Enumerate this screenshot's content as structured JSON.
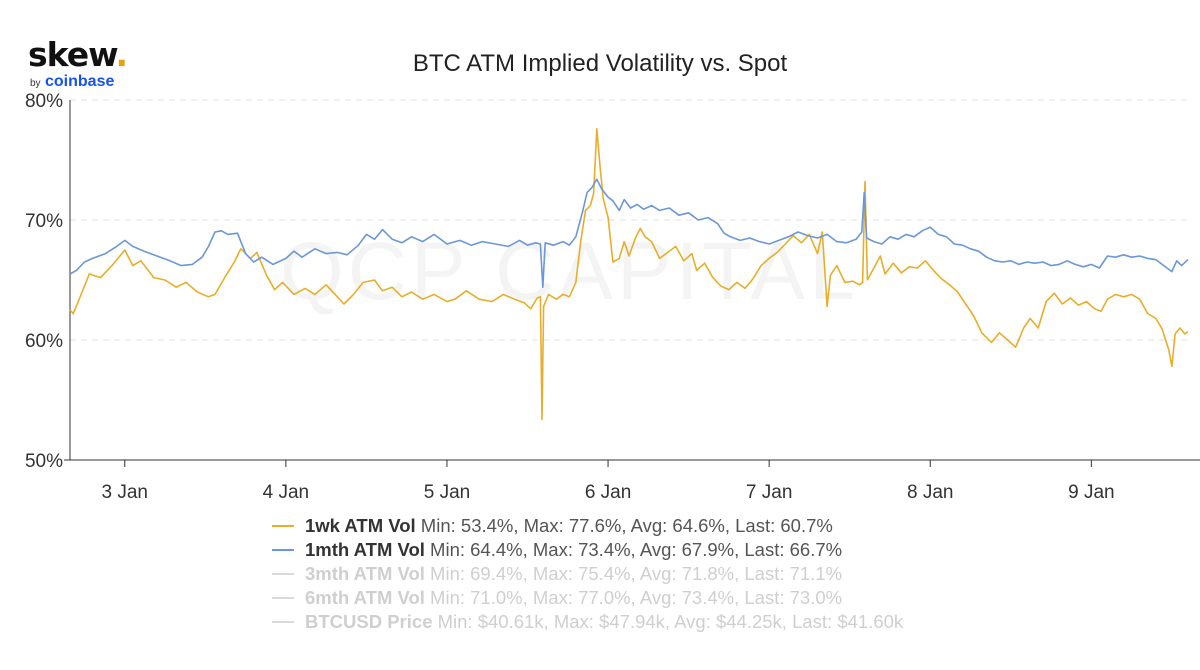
{
  "logo": {
    "wordmark": "skew",
    "dot": ".",
    "by": "by",
    "brand": "coinbase"
  },
  "watermark": "QCP CAPITAL",
  "colors": {
    "series_1wk": "#e8ae2b",
    "series_1mth": "#6a97d8",
    "grid": "#e0e0e0",
    "axis": "#333333",
    "hidden": "#cfcfcf"
  },
  "chart_data": {
    "type": "line",
    "title": "BTC ATM Implied Volatility vs. Spot",
    "xlabel": "",
    "ylabel": "",
    "ylim": [
      50,
      80
    ],
    "xlim": [
      2.66,
      9.6
    ],
    "y_ticks": [
      "50%",
      "60%",
      "70%",
      "80%"
    ],
    "y_tick_values": [
      50,
      60,
      70,
      80
    ],
    "x_ticks": [
      "3 Jan",
      "4 Jan",
      "5 Jan",
      "6 Jan",
      "7 Jan",
      "8 Jan",
      "9 Jan"
    ],
    "x_tick_values": [
      3,
      4,
      5,
      6,
      7,
      8,
      9
    ],
    "grid": "horizontal dashed",
    "legend_position": "bottom",
    "series": [
      {
        "name": "1wk ATM Vol",
        "visible": true,
        "color": "#e8ae2b",
        "stats": "Min: 53.4%, Max: 77.6%, Avg: 64.6%, Last: 60.7%",
        "points": [
          [
            2.66,
            62.5
          ],
          [
            2.68,
            62.2
          ],
          [
            2.72,
            63.5
          ],
          [
            2.78,
            65.5
          ],
          [
            2.85,
            65.2
          ],
          [
            2.92,
            66.2
          ],
          [
            2.97,
            67.0
          ],
          [
            3.0,
            67.5
          ],
          [
            3.05,
            66.2
          ],
          [
            3.1,
            66.6
          ],
          [
            3.18,
            65.2
          ],
          [
            3.25,
            65.0
          ],
          [
            3.32,
            64.4
          ],
          [
            3.38,
            64.8
          ],
          [
            3.45,
            64.0
          ],
          [
            3.52,
            63.6
          ],
          [
            3.56,
            63.8
          ],
          [
            3.62,
            65.2
          ],
          [
            3.68,
            66.5
          ],
          [
            3.72,
            67.6
          ],
          [
            3.78,
            66.8
          ],
          [
            3.82,
            67.3
          ],
          [
            3.88,
            65.4
          ],
          [
            3.93,
            64.2
          ],
          [
            3.98,
            64.8
          ],
          [
            4.05,
            63.8
          ],
          [
            4.12,
            64.3
          ],
          [
            4.18,
            63.8
          ],
          [
            4.25,
            64.6
          ],
          [
            4.32,
            63.6
          ],
          [
            4.36,
            63.0
          ],
          [
            4.42,
            63.8
          ],
          [
            4.48,
            64.8
          ],
          [
            4.55,
            65.0
          ],
          [
            4.6,
            64.1
          ],
          [
            4.66,
            64.4
          ],
          [
            4.72,
            63.6
          ],
          [
            4.78,
            64.0
          ],
          [
            4.85,
            63.4
          ],
          [
            4.92,
            63.8
          ],
          [
            5.0,
            63.2
          ],
          [
            5.05,
            63.4
          ],
          [
            5.12,
            64.1
          ],
          [
            5.2,
            63.4
          ],
          [
            5.28,
            63.2
          ],
          [
            5.35,
            63.8
          ],
          [
            5.42,
            63.4
          ],
          [
            5.48,
            63.1
          ],
          [
            5.52,
            62.6
          ],
          [
            5.56,
            63.5
          ],
          [
            5.58,
            63.6
          ],
          [
            5.59,
            53.4
          ],
          [
            5.6,
            62.8
          ],
          [
            5.63,
            63.8
          ],
          [
            5.68,
            63.4
          ],
          [
            5.72,
            63.8
          ],
          [
            5.76,
            63.6
          ],
          [
            5.8,
            64.8
          ],
          [
            5.83,
            68.2
          ],
          [
            5.86,
            70.8
          ],
          [
            5.89,
            71.2
          ],
          [
            5.91,
            72.2
          ],
          [
            5.93,
            77.6
          ],
          [
            5.95,
            74.5
          ],
          [
            5.97,
            71.8
          ],
          [
            6.0,
            70.2
          ],
          [
            6.03,
            66.5
          ],
          [
            6.07,
            66.8
          ],
          [
            6.1,
            68.2
          ],
          [
            6.13,
            67.0
          ],
          [
            6.17,
            68.5
          ],
          [
            6.2,
            69.3
          ],
          [
            6.23,
            68.6
          ],
          [
            6.27,
            68.2
          ],
          [
            6.32,
            66.8
          ],
          [
            6.37,
            67.3
          ],
          [
            6.42,
            67.8
          ],
          [
            6.47,
            66.6
          ],
          [
            6.52,
            67.2
          ],
          [
            6.55,
            65.8
          ],
          [
            6.6,
            66.4
          ],
          [
            6.65,
            65.2
          ],
          [
            6.7,
            64.5
          ],
          [
            6.75,
            64.2
          ],
          [
            6.8,
            64.8
          ],
          [
            6.85,
            64.3
          ],
          [
            6.9,
            65.1
          ],
          [
            6.95,
            66.2
          ],
          [
            7.0,
            66.8
          ],
          [
            7.05,
            67.3
          ],
          [
            7.1,
            68.0
          ],
          [
            7.15,
            68.7
          ],
          [
            7.2,
            68.1
          ],
          [
            7.25,
            68.8
          ],
          [
            7.3,
            67.2
          ],
          [
            7.33,
            69.0
          ],
          [
            7.36,
            62.8
          ],
          [
            7.38,
            65.4
          ],
          [
            7.42,
            66.2
          ],
          [
            7.47,
            64.8
          ],
          [
            7.52,
            64.9
          ],
          [
            7.56,
            64.6
          ],
          [
            7.58,
            64.8
          ],
          [
            7.595,
            73.2
          ],
          [
            7.61,
            65.0
          ],
          [
            7.65,
            66.0
          ],
          [
            7.69,
            67.0
          ],
          [
            7.72,
            65.5
          ],
          [
            7.77,
            66.4
          ],
          [
            7.82,
            65.6
          ],
          [
            7.87,
            66.1
          ],
          [
            7.92,
            66.0
          ],
          [
            7.97,
            66.6
          ],
          [
            8.02,
            65.8
          ],
          [
            8.07,
            65.1
          ],
          [
            8.12,
            64.6
          ],
          [
            8.17,
            64.0
          ],
          [
            8.22,
            63.0
          ],
          [
            8.27,
            62.0
          ],
          [
            8.32,
            60.6
          ],
          [
            8.38,
            59.8
          ],
          [
            8.43,
            60.6
          ],
          [
            8.48,
            60.0
          ],
          [
            8.53,
            59.4
          ],
          [
            8.58,
            61.0
          ],
          [
            8.62,
            61.8
          ],
          [
            8.67,
            61.0
          ],
          [
            8.72,
            63.2
          ],
          [
            8.77,
            63.9
          ],
          [
            8.82,
            63.0
          ],
          [
            8.87,
            63.5
          ],
          [
            8.92,
            62.9
          ],
          [
            8.97,
            63.2
          ],
          [
            9.02,
            62.6
          ],
          [
            9.06,
            62.4
          ],
          [
            9.1,
            63.4
          ],
          [
            9.15,
            63.8
          ],
          [
            9.2,
            63.6
          ],
          [
            9.25,
            63.8
          ],
          [
            9.3,
            63.4
          ],
          [
            9.35,
            62.2
          ],
          [
            9.4,
            61.8
          ],
          [
            9.44,
            60.9
          ],
          [
            9.48,
            59.2
          ],
          [
            9.5,
            57.8
          ],
          [
            9.52,
            60.5
          ],
          [
            9.55,
            61.0
          ],
          [
            9.58,
            60.5
          ],
          [
            9.6,
            60.7
          ]
        ]
      },
      {
        "name": "1mth ATM Vol",
        "visible": true,
        "color": "#6a97d8",
        "stats": "Min: 64.4%, Max: 73.4%, Avg: 67.9%, Last: 66.7%",
        "points": [
          [
            2.66,
            65.5
          ],
          [
            2.7,
            65.8
          ],
          [
            2.75,
            66.5
          ],
          [
            2.8,
            66.8
          ],
          [
            2.88,
            67.2
          ],
          [
            2.95,
            67.8
          ],
          [
            3.0,
            68.3
          ],
          [
            3.05,
            67.8
          ],
          [
            3.12,
            67.4
          ],
          [
            3.2,
            67.0
          ],
          [
            3.28,
            66.6
          ],
          [
            3.35,
            66.2
          ],
          [
            3.42,
            66.3
          ],
          [
            3.48,
            66.9
          ],
          [
            3.52,
            67.8
          ],
          [
            3.56,
            69.0
          ],
          [
            3.6,
            69.1
          ],
          [
            3.64,
            68.8
          ],
          [
            3.7,
            68.9
          ],
          [
            3.75,
            67.2
          ],
          [
            3.8,
            66.5
          ],
          [
            3.85,
            66.9
          ],
          [
            3.92,
            66.3
          ],
          [
            4.0,
            66.8
          ],
          [
            4.05,
            67.4
          ],
          [
            4.1,
            66.9
          ],
          [
            4.18,
            67.6
          ],
          [
            4.25,
            67.2
          ],
          [
            4.32,
            67.3
          ],
          [
            4.38,
            67.1
          ],
          [
            4.45,
            67.9
          ],
          [
            4.5,
            68.8
          ],
          [
            4.55,
            68.4
          ],
          [
            4.6,
            69.2
          ],
          [
            4.66,
            68.4
          ],
          [
            4.72,
            68.1
          ],
          [
            4.78,
            68.6
          ],
          [
            4.85,
            68.2
          ],
          [
            4.92,
            68.8
          ],
          [
            5.0,
            68.0
          ],
          [
            5.08,
            68.3
          ],
          [
            5.15,
            67.9
          ],
          [
            5.22,
            68.2
          ],
          [
            5.3,
            68.0
          ],
          [
            5.38,
            67.8
          ],
          [
            5.45,
            68.3
          ],
          [
            5.5,
            67.9
          ],
          [
            5.55,
            68.1
          ],
          [
            5.58,
            68.0
          ],
          [
            5.595,
            64.4
          ],
          [
            5.61,
            68.1
          ],
          [
            5.66,
            67.9
          ],
          [
            5.72,
            68.2
          ],
          [
            5.76,
            67.9
          ],
          [
            5.8,
            68.6
          ],
          [
            5.84,
            70.6
          ],
          [
            5.87,
            72.3
          ],
          [
            5.9,
            72.7
          ],
          [
            5.93,
            73.4
          ],
          [
            5.96,
            72.6
          ],
          [
            6.0,
            71.9
          ],
          [
            6.03,
            71.6
          ],
          [
            6.07,
            70.8
          ],
          [
            6.1,
            71.7
          ],
          [
            6.14,
            71.0
          ],
          [
            6.18,
            71.3
          ],
          [
            6.22,
            70.9
          ],
          [
            6.27,
            71.2
          ],
          [
            6.32,
            70.8
          ],
          [
            6.38,
            71.0
          ],
          [
            6.44,
            70.4
          ],
          [
            6.5,
            70.6
          ],
          [
            6.56,
            70.0
          ],
          [
            6.62,
            70.2
          ],
          [
            6.68,
            69.7
          ],
          [
            6.72,
            68.9
          ],
          [
            6.76,
            68.6
          ],
          [
            6.82,
            68.3
          ],
          [
            6.88,
            68.5
          ],
          [
            6.94,
            68.2
          ],
          [
            7.0,
            68.0
          ],
          [
            7.06,
            68.3
          ],
          [
            7.12,
            68.6
          ],
          [
            7.18,
            69.0
          ],
          [
            7.24,
            68.7
          ],
          [
            7.3,
            68.5
          ],
          [
            7.36,
            68.8
          ],
          [
            7.42,
            68.2
          ],
          [
            7.48,
            68.1
          ],
          [
            7.54,
            68.4
          ],
          [
            7.575,
            69.0
          ],
          [
            7.59,
            72.3
          ],
          [
            7.605,
            68.5
          ],
          [
            7.65,
            68.2
          ],
          [
            7.7,
            68.0
          ],
          [
            7.75,
            68.6
          ],
          [
            7.8,
            68.4
          ],
          [
            7.85,
            68.8
          ],
          [
            7.9,
            68.6
          ],
          [
            7.95,
            69.1
          ],
          [
            8.0,
            69.4
          ],
          [
            8.05,
            68.8
          ],
          [
            8.1,
            68.6
          ],
          [
            8.15,
            68.0
          ],
          [
            8.2,
            67.9
          ],
          [
            8.25,
            67.6
          ],
          [
            8.3,
            67.4
          ],
          [
            8.35,
            66.9
          ],
          [
            8.4,
            66.6
          ],
          [
            8.45,
            66.5
          ],
          [
            8.5,
            66.6
          ],
          [
            8.55,
            66.3
          ],
          [
            8.6,
            66.5
          ],
          [
            8.65,
            66.4
          ],
          [
            8.7,
            66.5
          ],
          [
            8.75,
            66.2
          ],
          [
            8.8,
            66.3
          ],
          [
            8.85,
            66.6
          ],
          [
            8.9,
            66.3
          ],
          [
            8.95,
            66.1
          ],
          [
            9.0,
            66.3
          ],
          [
            9.05,
            66.0
          ],
          [
            9.1,
            67.0
          ],
          [
            9.15,
            66.9
          ],
          [
            9.2,
            67.1
          ],
          [
            9.25,
            66.9
          ],
          [
            9.3,
            67.0
          ],
          [
            9.35,
            66.8
          ],
          [
            9.4,
            66.7
          ],
          [
            9.45,
            66.2
          ],
          [
            9.5,
            65.7
          ],
          [
            9.53,
            66.6
          ],
          [
            9.56,
            66.2
          ],
          [
            9.6,
            66.7
          ]
        ]
      },
      {
        "name": "3mth ATM Vol",
        "visible": false,
        "stats": "Min: 69.4%, Max: 75.4%, Avg: 71.8%, Last: 71.1%"
      },
      {
        "name": "6mth ATM Vol",
        "visible": false,
        "stats": "Min: 71.0%, Max: 77.0%, Avg: 73.4%, Last: 73.0%"
      },
      {
        "name": "BTCUSD Price",
        "visible": false,
        "stats": "Min: $40.61k, Max: $47.94k, Avg: $44.25k, Last: $41.60k"
      }
    ]
  }
}
